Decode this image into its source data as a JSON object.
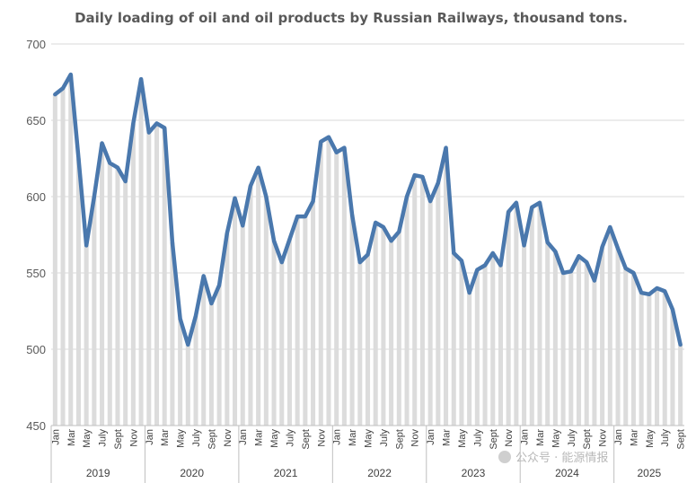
{
  "chart_data": {
    "type": "line",
    "title": "Daily loading of oil and oil products by Russian Railways, thousand tons.",
    "ylim": [
      450,
      700
    ],
    "yticks": [
      450,
      500,
      550,
      600,
      650,
      700
    ],
    "grid": true,
    "x_tick_labels": [
      "Jan",
      "Mar",
      "May",
      "July",
      "Sept",
      "Nov"
    ],
    "years": [
      "2019",
      "2020",
      "2021",
      "2022",
      "2023",
      "2024",
      "2025"
    ],
    "series": [
      {
        "name": "",
        "color": "#4a78ad",
        "values": [
          667,
          671,
          680,
          625,
          568,
          600,
          635,
          622,
          619,
          610,
          648,
          677,
          642,
          648,
          645,
          570,
          520,
          503,
          522,
          548,
          530,
          542,
          576,
          599,
          581,
          607,
          619,
          600,
          571,
          557,
          572,
          587,
          587,
          597,
          636,
          639,
          629,
          632,
          588,
          557,
          562,
          583,
          580,
          571,
          577,
          600,
          614,
          613,
          597,
          609,
          632,
          563,
          558,
          537,
          552,
          555,
          563,
          555,
          590,
          596,
          568,
          593,
          596,
          570,
          564,
          550,
          551,
          561,
          557,
          545,
          567,
          580,
          566,
          553,
          550,
          537,
          536,
          540,
          538,
          526,
          503
        ]
      }
    ]
  },
  "watermark": {
    "text": "公众号 · 能源情报"
  }
}
